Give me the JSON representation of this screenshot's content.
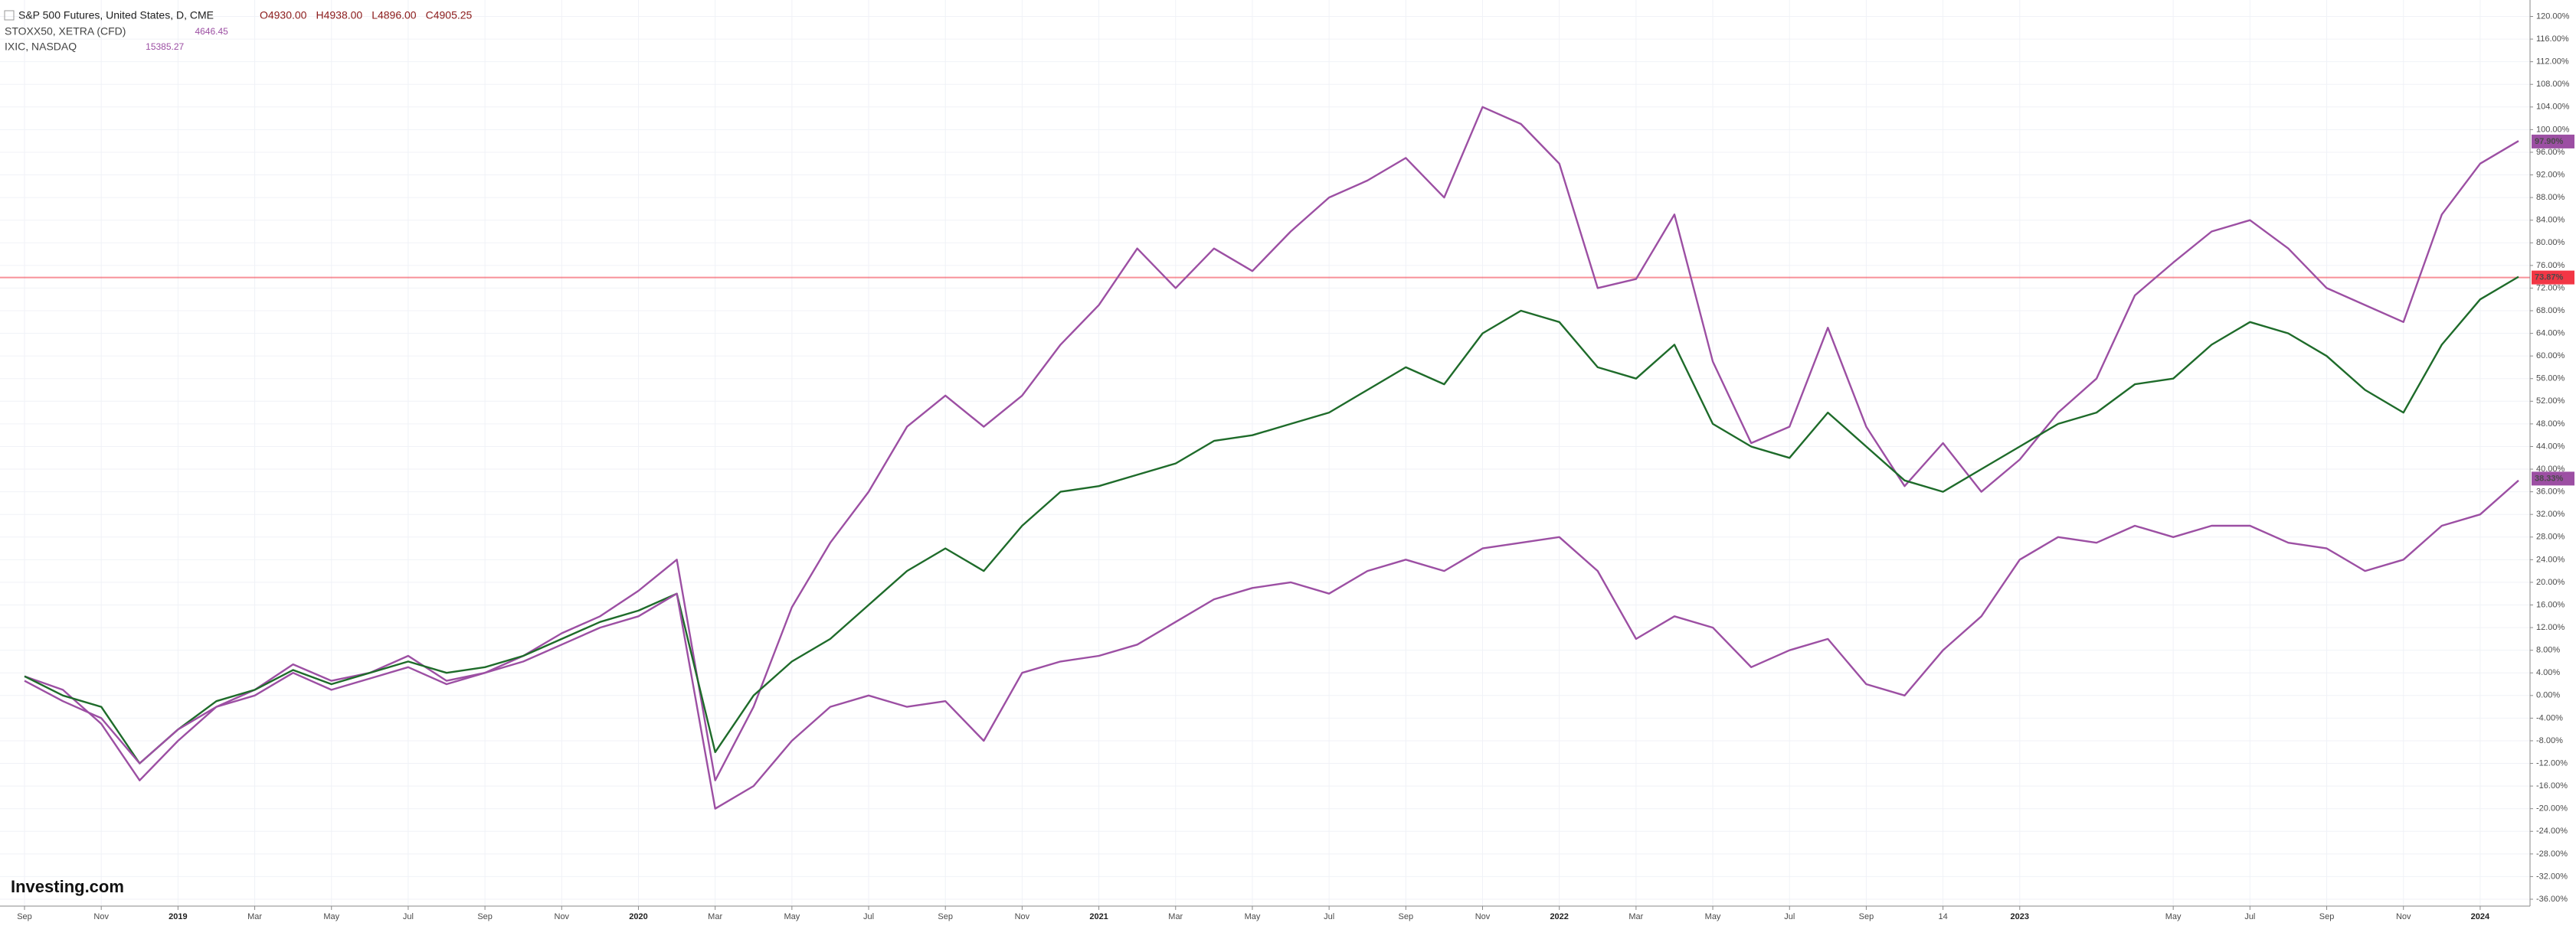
{
  "chart_data": {
    "type": "line",
    "legend": [
      {
        "name": "S&P 500 Futures, United States, D, CME",
        "ohlc": [
          "O4930.00",
          "H4938.00",
          "L4896.00",
          "C4905.25"
        ]
      },
      {
        "name": "STOXX50, XETRA (CFD)",
        "last": "4646.45"
      },
      {
        "name": "IXIC, NASDAQ",
        "last": "15385.27"
      }
    ],
    "watermark": "Investing.com",
    "categories": [
      "Sep",
      null,
      "Nov",
      null,
      "2019",
      null,
      "Mar",
      null,
      "May",
      null,
      "Jul",
      null,
      "Sep",
      null,
      "Nov",
      null,
      "2020",
      null,
      "Mar",
      null,
      "May",
      null,
      "Jul",
      null,
      "Sep",
      null,
      "Nov",
      null,
      "2021",
      null,
      "Mar",
      null,
      "May",
      null,
      "Jul",
      null,
      "Sep",
      null,
      "Nov",
      null,
      "2022",
      null,
      "Mar",
      null,
      "May",
      null,
      "Jul",
      null,
      "Sep",
      null,
      "14",
      null,
      "2023",
      null,
      null,
      null,
      "May",
      null,
      "Jul",
      null,
      "Sep",
      null,
      "Nov",
      null,
      "2024",
      null
    ],
    "bold_categories": [
      "2019",
      "2020",
      "2021",
      "2022",
      "2023",
      "2024"
    ],
    "series": [
      {
        "name": "IXIC, NASDAQ",
        "color": "#9c4fa3",
        "badge": {
          "value": 97.9,
          "label": "97.90%"
        },
        "values": [
          3.4,
          1,
          -5,
          -15,
          -8,
          -2,
          1,
          5.5,
          2.6,
          4,
          7,
          2.6,
          4,
          7,
          11,
          14,
          18.5,
          24,
          -15,
          -2,
          15.6,
          27,
          36,
          47.5,
          53,
          47.5,
          53,
          62,
          69,
          79,
          72,
          79,
          75,
          82,
          88,
          91,
          95,
          88,
          104,
          101,
          94,
          72,
          73.6,
          85,
          59,
          44.6,
          47.5,
          65,
          47.5,
          37,
          44.6,
          36,
          41.7,
          50,
          56,
          70.7,
          76.5,
          82,
          84,
          79,
          72,
          69,
          66,
          85,
          94,
          98
        ]
      },
      {
        "name": "S&P 500 Futures, United States, D, CME",
        "color": "#1e6b2a",
        "values": [
          3.4,
          0,
          -2,
          -12,
          -6,
          -1,
          1,
          4.5,
          2,
          4,
          6,
          4,
          5,
          7,
          10,
          13,
          15,
          18,
          -10,
          0,
          6,
          10,
          16,
          22,
          26,
          22,
          30,
          36,
          37,
          39,
          41,
          45,
          46,
          48,
          50,
          54,
          58,
          55,
          64,
          68,
          66,
          58,
          56,
          62,
          48,
          44,
          42,
          50,
          44,
          38,
          36,
          40,
          44,
          48,
          50,
          55,
          56,
          62,
          66,
          64,
          60,
          54,
          50,
          62,
          70,
          74
        ]
      },
      {
        "name": "STOXX50, XETRA (CFD)",
        "color": "#9c4fa3",
        "badge": {
          "value": 38.33,
          "label": "38.33%"
        },
        "values": [
          2.6,
          -1,
          -4,
          -12,
          -6,
          -2,
          0,
          4,
          1,
          3,
          5,
          2,
          4,
          6,
          9,
          12,
          14,
          18,
          -20,
          -16,
          -8,
          -2,
          0,
          -2,
          -1,
          -8,
          4,
          6,
          7,
          9,
          13,
          17,
          19,
          20,
          18,
          22,
          24,
          22,
          26,
          27,
          28,
          22,
          10,
          14,
          12,
          5,
          8,
          10,
          2,
          0,
          8,
          14,
          24,
          28,
          27,
          30,
          28,
          30,
          30,
          27,
          26,
          22,
          24,
          30,
          32,
          38
        ]
      }
    ],
    "price_line": {
      "value": 73.87,
      "label": "73.87%",
      "color": "#f23645"
    },
    "ylim": [
      -36,
      120
    ],
    "yticks": [
      {
        "value": 120,
        "label": "120.00%"
      },
      {
        "value": 116,
        "label": "116.00%"
      },
      {
        "value": 112,
        "label": "112.00%"
      },
      {
        "value": 108,
        "label": "108.00%"
      },
      {
        "value": 104,
        "label": "104.00%"
      },
      {
        "value": 100,
        "label": "100.00%"
      },
      {
        "value": 96,
        "label": "96.00%"
      },
      {
        "value": 92,
        "label": "92.00%"
      },
      {
        "value": 88,
        "label": "88.00%"
      },
      {
        "value": 84,
        "label": "84.00%"
      },
      {
        "value": 80,
        "label": "80.00%"
      },
      {
        "value": 76,
        "label": "76.00%"
      },
      {
        "value": 72,
        "label": "72.00%"
      },
      {
        "value": 68,
        "label": "68.00%"
      },
      {
        "value": 64,
        "label": "64.00%"
      },
      {
        "value": 60,
        "label": "60.00%"
      },
      {
        "value": 56,
        "label": "56.00%"
      },
      {
        "value": 52,
        "label": "52.00%"
      },
      {
        "value": 48,
        "label": "48.00%"
      },
      {
        "value": 44,
        "label": "44.00%"
      },
      {
        "value": 40,
        "label": "40.00%"
      },
      {
        "value": 36,
        "label": "36.00%"
      },
      {
        "value": 32,
        "label": "32.00%"
      },
      {
        "value": 28,
        "label": "28.00%"
      },
      {
        "value": 24,
        "label": "24.00%"
      },
      {
        "value": 20,
        "label": "20.00%"
      },
      {
        "value": 16,
        "label": "16.00%"
      },
      {
        "value": 12,
        "label": "12.00%"
      },
      {
        "value": 8,
        "label": "8.00%"
      },
      {
        "value": 4,
        "label": "4.00%"
      },
      {
        "value": 0,
        "label": "0.00%"
      },
      {
        "value": -4,
        "label": "-4.00%"
      },
      {
        "value": -8,
        "label": "-8.00%"
      },
      {
        "value": -12,
        "label": "-12.00%"
      },
      {
        "value": -16,
        "label": "-16.00%"
      },
      {
        "value": -20,
        "label": "-20.00%"
      },
      {
        "value": -24,
        "label": "-24.00%"
      },
      {
        "value": -28,
        "label": "-28.00%"
      },
      {
        "value": -32,
        "label": "-32.00%"
      },
      {
        "value": -36,
        "label": "-36.00%"
      }
    ],
    "grid": true
  }
}
